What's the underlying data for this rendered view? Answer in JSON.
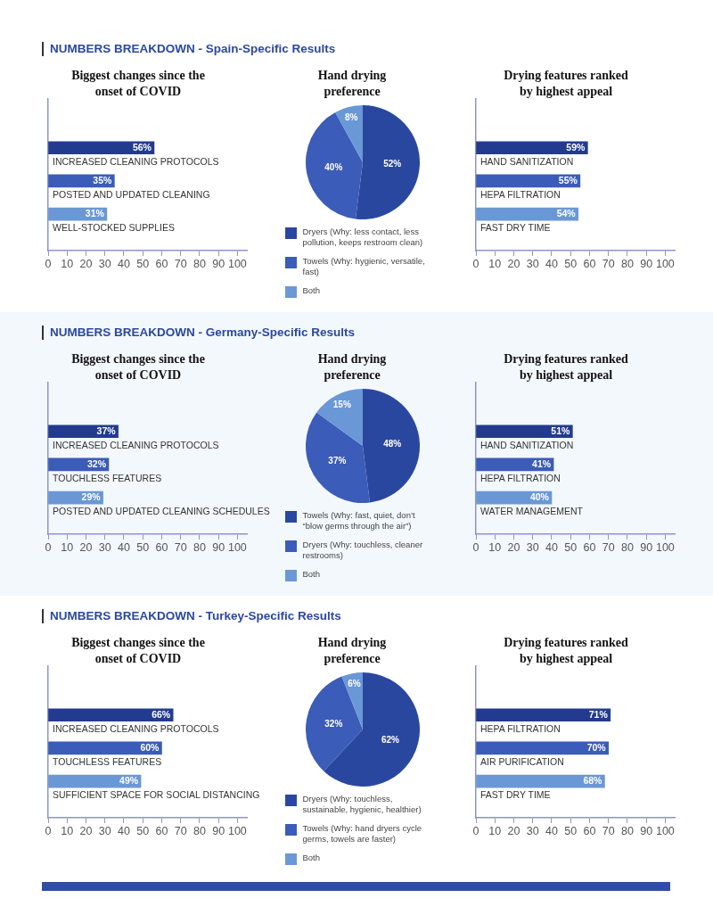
{
  "chart_data": [
    {
      "type": "bar",
      "orientation": "horizontal",
      "annotations": [
        "NUMBERS BREAKDOWN - Spain-Specific Results"
      ],
      "title": "Biggest changes since the onset of COVID",
      "categories": [
        "INCREASED CLEANING PROTOCOLS",
        "POSTED AND UPDATED CLEANING",
        "WELL-STOCKED SUPPLIES"
      ],
      "values": [
        56,
        35,
        31
      ],
      "value_labels": [
        "56%",
        "35%",
        "31%"
      ],
      "colors": [
        "#233b8f",
        "#3b5cb8",
        "#6a98d6"
      ],
      "xlim": [
        0,
        105
      ],
      "xticks": [
        0,
        10,
        20,
        30,
        40,
        50,
        60,
        70,
        80,
        90,
        100
      ]
    },
    {
      "type": "pie",
      "title": "Hand drying preference",
      "categories": [
        "Dryers (Why: less contact, less pollution, keeps restroom clean)",
        "Towels (Why: hygienic, versatile, fast)",
        "Both"
      ],
      "values": [
        52,
        40,
        8
      ],
      "value_labels": [
        "52%",
        "40%",
        "8%"
      ],
      "colors": [
        "#2a47a0",
        "#3b5cb8",
        "#6a98d6"
      ],
      "legend": "bottom"
    },
    {
      "type": "bar",
      "orientation": "horizontal",
      "title": "Drying features ranked by highest appeal",
      "categories": [
        "HAND SANITIZATION",
        "HEPA FILTRATION",
        "FAST DRY TIME"
      ],
      "values": [
        59,
        55,
        54
      ],
      "value_labels": [
        "59%",
        "55%",
        "54%"
      ],
      "colors": [
        "#233b8f",
        "#3b5cb8",
        "#6a98d6"
      ],
      "xlim": [
        0,
        105
      ],
      "xticks": [
        0,
        10,
        20,
        30,
        40,
        50,
        60,
        70,
        80,
        90,
        100
      ]
    },
    {
      "type": "bar",
      "orientation": "horizontal",
      "annotations": [
        "NUMBERS BREAKDOWN - Germany-Specific Results"
      ],
      "title": "Biggest changes since the onset of COVID",
      "categories": [
        "INCREASED CLEANING PROTOCOLS",
        "TOUCHLESS FEATURES",
        "POSTED AND UPDATED CLEANING SCHEDULES"
      ],
      "values": [
        37,
        32,
        29
      ],
      "value_labels": [
        "37%",
        "32%",
        "29%"
      ],
      "colors": [
        "#233b8f",
        "#3b5cb8",
        "#6a98d6"
      ],
      "xlim": [
        0,
        105
      ],
      "xticks": [
        0,
        10,
        20,
        30,
        40,
        50,
        60,
        70,
        80,
        90,
        100
      ]
    },
    {
      "type": "pie",
      "title": "Hand drying preference",
      "categories": [
        "Towels (Why: fast, quiet, don’t “blow germs through the air”)",
        "Dryers (Why: touchless, cleaner restrooms)",
        "Both"
      ],
      "values": [
        48,
        37,
        15
      ],
      "value_labels": [
        "48%",
        "37%",
        "15%"
      ],
      "colors": [
        "#2a47a0",
        "#3b5cb8",
        "#6a98d6"
      ],
      "legend": "bottom"
    },
    {
      "type": "bar",
      "orientation": "horizontal",
      "title": "Drying features ranked by highest appeal",
      "categories": [
        "HAND SANITIZATION",
        "HEPA FILTRATION",
        "WATER MANAGEMENT"
      ],
      "values": [
        51,
        41,
        40
      ],
      "value_labels": [
        "51%",
        "41%",
        "40%"
      ],
      "colors": [
        "#233b8f",
        "#3b5cb8",
        "#6a98d6"
      ],
      "xlim": [
        0,
        105
      ],
      "xticks": [
        0,
        10,
        20,
        30,
        40,
        50,
        60,
        70,
        80,
        90,
        100
      ]
    },
    {
      "type": "bar",
      "orientation": "horizontal",
      "annotations": [
        "NUMBERS BREAKDOWN - Turkey-Specific Results"
      ],
      "title": "Biggest changes since the onset of COVID",
      "categories": [
        "INCREASED CLEANING PROTOCOLS",
        "TOUCHLESS FEATURES",
        "SUFFICIENT SPACE FOR SOCIAL DISTANCING"
      ],
      "values": [
        66,
        60,
        49
      ],
      "value_labels": [
        "66%",
        "60%",
        "49%"
      ],
      "colors": [
        "#233b8f",
        "#3b5cb8",
        "#6a98d6"
      ],
      "xlim": [
        0,
        105
      ],
      "xticks": [
        0,
        10,
        20,
        30,
        40,
        50,
        60,
        70,
        80,
        90,
        100
      ]
    },
    {
      "type": "pie",
      "title": "Hand drying preference",
      "categories": [
        "Dryers (Why: touchless, sustainable, hygienic, healthier)",
        "Towels (Why: hand dryers cycle germs, towels are faster)",
        "Both"
      ],
      "values": [
        62,
        32,
        6
      ],
      "value_labels": [
        "62%",
        "32%",
        "6%"
      ],
      "colors": [
        "#2a47a0",
        "#3b5cb8",
        "#6a98d6"
      ],
      "legend": "bottom"
    },
    {
      "type": "bar",
      "orientation": "horizontal",
      "title": "Drying features ranked by highest appeal",
      "categories": [
        "HEPA FILTRATION",
        "AIR PURIFICATION",
        "FAST DRY TIME"
      ],
      "values": [
        71,
        70,
        68
      ],
      "value_labels": [
        "71%",
        "70%",
        "68%"
      ],
      "colors": [
        "#233b8f",
        "#3b5cb8",
        "#6a98d6"
      ],
      "xlim": [
        0,
        105
      ],
      "xticks": [
        0,
        10,
        20,
        30,
        40,
        50,
        60,
        70,
        80,
        90,
        100
      ]
    }
  ]
}
